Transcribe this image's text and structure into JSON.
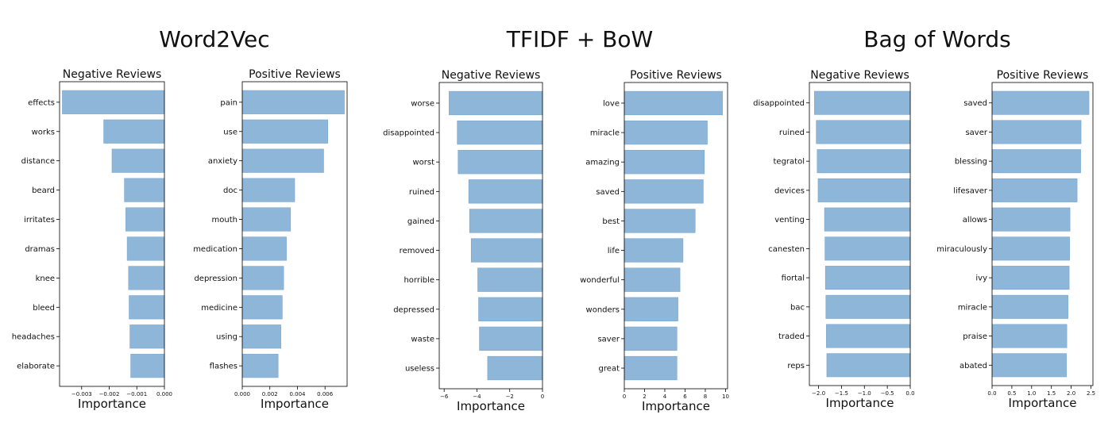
{
  "groups": [
    {
      "title": "Word2Vec"
    },
    {
      "title": "TFIDF + BoW"
    },
    {
      "title": "Bag of Words"
    }
  ],
  "chart_data": [
    {
      "type": "bar",
      "orientation": "horizontal",
      "title": "Negative Reviews",
      "xlabel": "Importance",
      "ylabel": "",
      "categories": [
        "effects",
        "works",
        "distance",
        "beard",
        "irritates",
        "dramas",
        "knee",
        "bleed",
        "headaches",
        "elaborate"
      ],
      "values": [
        -0.0037,
        -0.0022,
        -0.0019,
        -0.00145,
        -0.0014,
        -0.00135,
        -0.0013,
        -0.00128,
        -0.00125,
        -0.00122
      ],
      "xlim": [
        -0.0038,
        0.0
      ],
      "xticks": [
        -0.003,
        -0.002,
        -0.001,
        0.0
      ],
      "xtick_labels": [
        "−0.003",
        "−0.002",
        "−0.001",
        "0.000"
      ],
      "color": "#8db6d9",
      "grid": false
    },
    {
      "type": "bar",
      "orientation": "horizontal",
      "title": "Positive Reviews",
      "xlabel": "Importance",
      "ylabel": "",
      "categories": [
        "pain",
        "use",
        "anxiety",
        "doc",
        "mouth",
        "medication",
        "depression",
        "medicine",
        "using",
        "flashes"
      ],
      "values": [
        0.0074,
        0.0062,
        0.0059,
        0.0038,
        0.0035,
        0.0032,
        0.003,
        0.0029,
        0.0028,
        0.0026
      ],
      "xlim": [
        0.0,
        0.0076
      ],
      "xticks": [
        0.0,
        0.002,
        0.004,
        0.006
      ],
      "xtick_labels": [
        "0.000",
        "0.002",
        "0.004",
        "0.006"
      ],
      "color": "#8db6d9",
      "grid": false
    },
    {
      "type": "bar",
      "orientation": "horizontal",
      "title": "Negative Reviews",
      "xlabel": "Importance",
      "ylabel": "",
      "categories": [
        "worse",
        "disappointed",
        "worst",
        "ruined",
        "gained",
        "removed",
        "horrible",
        "depressed",
        "waste",
        "useless"
      ],
      "values": [
        -5.7,
        -5.2,
        -5.15,
        -4.5,
        -4.45,
        -4.35,
        -3.95,
        -3.9,
        -3.85,
        -3.35
      ],
      "xlim": [
        -6.3,
        0
      ],
      "xticks": [
        -6,
        -4,
        -2,
        0
      ],
      "xtick_labels": [
        "−6",
        "−4",
        "−2",
        "0"
      ],
      "color": "#8db6d9",
      "grid": false
    },
    {
      "type": "bar",
      "orientation": "horizontal",
      "title": "Positive Reviews",
      "xlabel": "Importance",
      "ylabel": "",
      "categories": [
        "love",
        "miracle",
        "amazing",
        "saved",
        "best",
        "life",
        "wonderful",
        "wonders",
        "saver",
        "great"
      ],
      "values": [
        9.7,
        8.2,
        7.9,
        7.8,
        7.0,
        5.8,
        5.5,
        5.3,
        5.2,
        5.2
      ],
      "xlim": [
        0,
        10.2
      ],
      "xticks": [
        0,
        2,
        4,
        6,
        8,
        10
      ],
      "xtick_labels": [
        "0",
        "2",
        "4",
        "6",
        "8",
        "10"
      ],
      "color": "#8db6d9",
      "grid": false
    },
    {
      "type": "bar",
      "orientation": "horizontal",
      "title": "Negative Reviews",
      "xlabel": "Importance",
      "ylabel": "",
      "categories": [
        "disappointed",
        "ruined",
        "tegratol",
        "devices",
        "venting",
        "canesten",
        "fiortal",
        "bac",
        "traded",
        "reps"
      ],
      "values": [
        -2.09,
        -2.05,
        -2.03,
        -2.01,
        -1.87,
        -1.86,
        -1.85,
        -1.84,
        -1.83,
        -1.82
      ],
      "xlim": [
        -2.2,
        0.0
      ],
      "xticks": [
        -2.0,
        -1.5,
        -1.0,
        -0.5,
        0.0
      ],
      "xtick_labels": [
        "−2.0",
        "−1.5",
        "−1.0",
        "−0.5",
        "0.0"
      ],
      "color": "#8db6d9",
      "grid": false
    },
    {
      "type": "bar",
      "orientation": "horizontal",
      "title": "Positive Reviews",
      "xlabel": "Importance",
      "ylabel": "",
      "categories": [
        "saved",
        "saver",
        "blessing",
        "lifesaver",
        "allows",
        "miraculously",
        "ivy",
        "miracle",
        "praise",
        "abated"
      ],
      "values": [
        2.45,
        2.25,
        2.24,
        2.15,
        1.97,
        1.96,
        1.95,
        1.92,
        1.89,
        1.88
      ],
      "xlim": [
        0.0,
        2.55
      ],
      "xticks": [
        0.0,
        0.5,
        1.0,
        1.5,
        2.0,
        2.5
      ],
      "xtick_labels": [
        "0.0",
        "0.5",
        "1.0",
        "1.5",
        "2.0",
        "2.5"
      ],
      "color": "#8db6d9",
      "grid": false
    }
  ]
}
